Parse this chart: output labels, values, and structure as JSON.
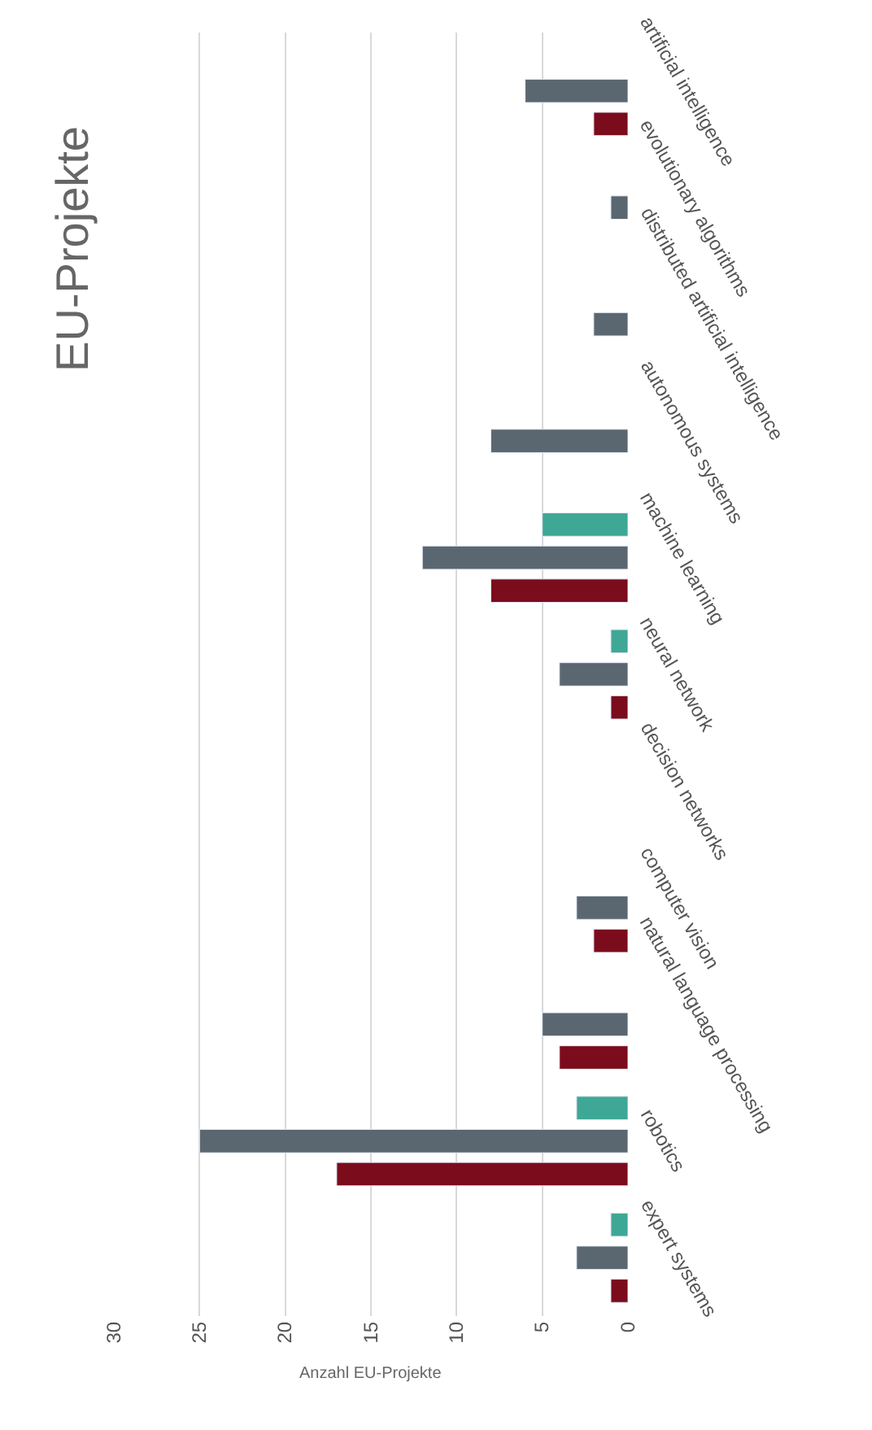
{
  "chart_data": {
    "type": "bar",
    "orientation": "horizontal",
    "title": "EU-Projekte",
    "xlabel": "Anzahl EU-Projekte",
    "categories": [
      "artificial intelligence",
      "evolutionary algorithms",
      "distributed artificial intelligence",
      "autonomous systems",
      "machine learning",
      "neural network",
      "decision networks",
      "computer vision",
      "natural language processing",
      "robotics",
      "expert systems"
    ],
    "series": [
      {
        "color": "#7b0c1c",
        "values": [
          2,
          null,
          null,
          null,
          8,
          1,
          null,
          2,
          4,
          17,
          1
        ]
      },
      {
        "color": "#5b6770",
        "values": [
          6,
          1,
          2,
          8,
          12,
          4,
          null,
          3,
          5,
          25,
          3
        ]
      },
      {
        "color": "#3fa796",
        "values": [
          null,
          null,
          null,
          null,
          5,
          1,
          null,
          null,
          null,
          3,
          1
        ]
      }
    ],
    "xlim": [
      30,
      0
    ],
    "xticks": [
      0,
      5,
      10,
      15,
      20,
      25,
      30
    ],
    "grid": "x",
    "legend": false
  }
}
